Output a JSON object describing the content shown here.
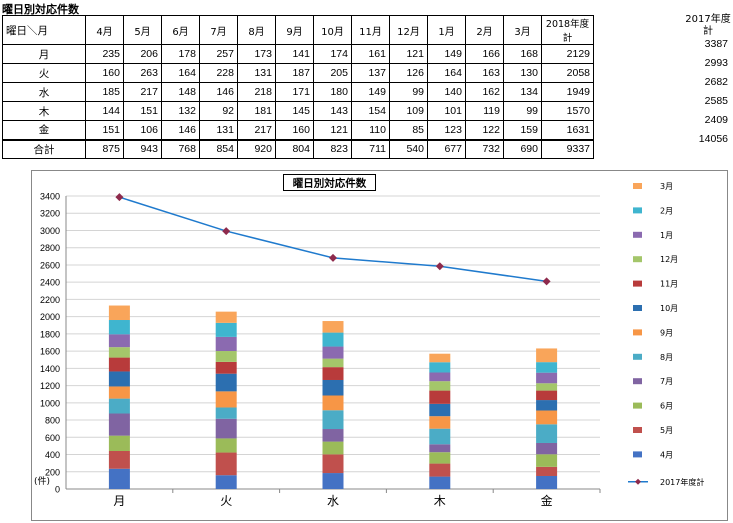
{
  "page": {
    "title": "曜日別対応件数"
  },
  "table": {
    "corner_label": "曜日＼月",
    "month_headers": [
      "4月",
      "5月",
      "6月",
      "7月",
      "8月",
      "9月",
      "10月",
      "11月",
      "12月",
      "1月",
      "2月",
      "3月",
      "2018年度計"
    ],
    "extra_header": [
      "2017年度",
      "計"
    ],
    "rows": [
      {
        "label": "月",
        "values": [
          "235",
          "206",
          "178",
          "257",
          "173",
          "141",
          "174",
          "161",
          "121",
          "149",
          "166",
          "168",
          "2129"
        ],
        "extra": "3387"
      },
      {
        "label": "火",
        "values": [
          "160",
          "263",
          "164",
          "228",
          "131",
          "187",
          "205",
          "137",
          "126",
          "164",
          "163",
          "130",
          "2058"
        ],
        "extra": "2993"
      },
      {
        "label": "水",
        "values": [
          "185",
          "217",
          "148",
          "146",
          "218",
          "171",
          "180",
          "149",
          "99",
          "140",
          "162",
          "134",
          "1949"
        ],
        "extra": "2682"
      },
      {
        "label": "木",
        "values": [
          "144",
          "151",
          "132",
          "92",
          "181",
          "145",
          "143",
          "154",
          "109",
          "101",
          "119",
          "99",
          "1570"
        ],
        "extra": "2585"
      },
      {
        "label": "金",
        "values": [
          "151",
          "106",
          "146",
          "131",
          "217",
          "160",
          "121",
          "110",
          "85",
          "123",
          "122",
          "159",
          "1631"
        ],
        "extra": "2409"
      },
      {
        "label": "合計",
        "values": [
          "875",
          "943",
          "768",
          "854",
          "920",
          "804",
          "823",
          "711",
          "540",
          "677",
          "732",
          "690",
          "9337"
        ],
        "extra": "14056"
      }
    ]
  },
  "chart_data": {
    "type": "bar",
    "title": "曜日別対応件数",
    "unit_label": "(件)",
    "categories": [
      "月",
      "火",
      "水",
      "木",
      "金"
    ],
    "ylim": [
      0,
      3400
    ],
    "yticks": [
      0,
      200,
      400,
      600,
      800,
      1000,
      1200,
      1400,
      1600,
      1800,
      2000,
      2200,
      2400,
      2600,
      2800,
      3000,
      3200,
      3400
    ],
    "grid": true,
    "legend_position": "right",
    "stacked_series": [
      {
        "name": "4月",
        "color": "#4472C4",
        "values": [
          235,
          160,
          185,
          144,
          151
        ]
      },
      {
        "name": "5月",
        "color": "#C0504D",
        "values": [
          206,
          263,
          217,
          151,
          106
        ]
      },
      {
        "name": "6月",
        "color": "#9BBB59",
        "values": [
          178,
          164,
          148,
          132,
          146
        ]
      },
      {
        "name": "7月",
        "color": "#8064A2",
        "values": [
          257,
          228,
          146,
          92,
          131
        ]
      },
      {
        "name": "8月",
        "color": "#4BACC6",
        "values": [
          173,
          131,
          218,
          181,
          217
        ]
      },
      {
        "name": "9月",
        "color": "#F79646",
        "values": [
          141,
          187,
          171,
          145,
          160
        ]
      },
      {
        "name": "10月",
        "color": "#2C6FB0",
        "values": [
          174,
          205,
          180,
          143,
          121
        ]
      },
      {
        "name": "11月",
        "color": "#B83B3B",
        "values": [
          161,
          137,
          149,
          154,
          110
        ]
      },
      {
        "name": "12月",
        "color": "#A4C66A",
        "values": [
          121,
          126,
          99,
          109,
          85
        ]
      },
      {
        "name": "1月",
        "color": "#8B6AB0",
        "values": [
          149,
          164,
          140,
          101,
          123
        ]
      },
      {
        "name": "2月",
        "color": "#3FB5CF",
        "values": [
          166,
          163,
          162,
          119,
          122
        ]
      },
      {
        "name": "3月",
        "color": "#F9A55A",
        "values": [
          168,
          130,
          134,
          99,
          159
        ]
      }
    ],
    "line_series": {
      "name": "2017年度計",
      "color": "#1F7ACD",
      "marker_color": "#8E2A4C",
      "values": [
        3387,
        2993,
        2682,
        2585,
        2409
      ]
    }
  }
}
